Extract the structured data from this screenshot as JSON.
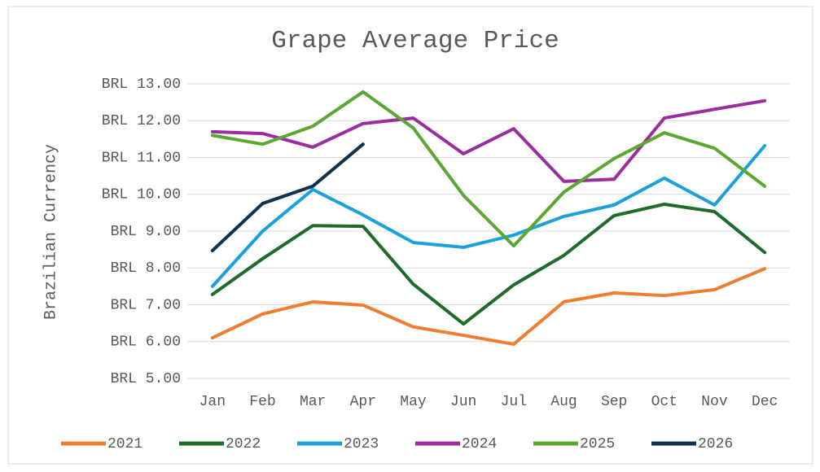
{
  "chart_data": {
    "type": "line",
    "title": "Grape Average Price",
    "y_label": "Brazilian Currency",
    "categories": [
      "Jan",
      "Feb",
      "Mar",
      "Apr",
      "May",
      "Jun",
      "Jul",
      "Aug",
      "Sep",
      "Oct",
      "Nov",
      "Dec"
    ],
    "series": [
      {
        "name": "2021",
        "color": "#ed7d31",
        "values": [
          6.1,
          6.75,
          7.08,
          6.99,
          6.4,
          6.17,
          5.93,
          7.08,
          7.32,
          7.25,
          7.41,
          7.98
        ]
      },
      {
        "name": "2022",
        "color": "#1e6b2a",
        "values": [
          7.28,
          8.25,
          9.15,
          9.13,
          7.56,
          6.48,
          7.54,
          8.34,
          9.42,
          9.73,
          9.53,
          8.42
        ]
      },
      {
        "name": "2023",
        "color": "#1aa0dc",
        "values": [
          7.5,
          9.0,
          10.13,
          9.44,
          8.69,
          8.56,
          8.89,
          9.4,
          9.71,
          10.44,
          9.71,
          11.32
        ]
      },
      {
        "name": "2024",
        "color": "#9b2d9e",
        "values": [
          11.7,
          11.65,
          11.28,
          11.92,
          12.07,
          11.1,
          11.78,
          10.35,
          10.41,
          12.07,
          12.31,
          12.54
        ]
      },
      {
        "name": "2025",
        "color": "#5aa832",
        "values": [
          11.6,
          11.36,
          11.85,
          12.78,
          11.8,
          9.97,
          8.6,
          10.06,
          10.97,
          11.67,
          11.25,
          10.22
        ]
      },
      {
        "name": "2026",
        "color": "#10324e",
        "values": [
          8.47,
          9.75,
          10.22,
          11.36,
          null,
          null,
          null,
          null,
          null,
          null,
          null,
          null
        ]
      }
    ],
    "ylim": [
      5,
      13
    ],
    "yticks": [
      {
        "value": 5,
        "label": "BRL 5.00"
      },
      {
        "value": 6,
        "label": "BRL 6.00"
      },
      {
        "value": 7,
        "label": "BRL 7.00"
      },
      {
        "value": 8,
        "label": "BRL 8.00"
      },
      {
        "value": 9,
        "label": "BRL 9.00"
      },
      {
        "value": 10,
        "label": "BRL 10.00"
      },
      {
        "value": 11,
        "label": "BRL 11.00"
      },
      {
        "value": 12,
        "label": "BRL 12.00"
      },
      {
        "value": 13,
        "label": "BRL 13.00"
      }
    ],
    "grid": true,
    "legend": "bottom"
  }
}
